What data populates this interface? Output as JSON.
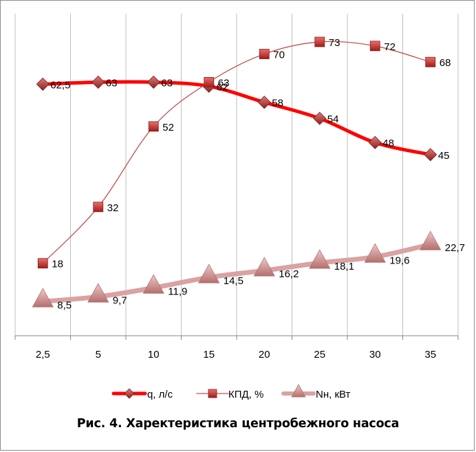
{
  "chart_data": {
    "type": "line",
    "categories": [
      "2,5",
      "5",
      "10",
      "15",
      "20",
      "25",
      "30",
      "35"
    ],
    "y_range": [
      0,
      80
    ],
    "grid": "vertical",
    "legend_position": "bottom",
    "series": [
      {
        "name": "q, л/с",
        "values": [
          62.5,
          63,
          63,
          62,
          58,
          54,
          48,
          45
        ],
        "labels": [
          "62,5",
          "63",
          "63",
          "62",
          "58",
          "54",
          "48",
          "45"
        ],
        "color": "#ff0000",
        "marker": "diamond",
        "marker_color": "#c0504d"
      },
      {
        "name": "КПД, %",
        "values": [
          18,
          32,
          52,
          63,
          70,
          73,
          72,
          68
        ],
        "labels": [
          "18",
          "32",
          "52",
          "63",
          "70",
          "73",
          "72",
          "68"
        ],
        "color": "#c0504d",
        "marker": "square",
        "marker_color": "#c0504d"
      },
      {
        "name": "Nн, кВт",
        "values": [
          8.5,
          9.7,
          11.9,
          14.5,
          16.2,
          18.1,
          19.6,
          22.7
        ],
        "labels": [
          "8,5",
          "9,7",
          "11,9",
          "14,5",
          "16,2",
          "18,1",
          "19,6",
          "22,7"
        ],
        "color": "#d9a3a1",
        "marker": "triangle",
        "marker_color": "#d99594"
      }
    ]
  },
  "caption": "Рис. 4. Харектеристика центробежного насоса"
}
